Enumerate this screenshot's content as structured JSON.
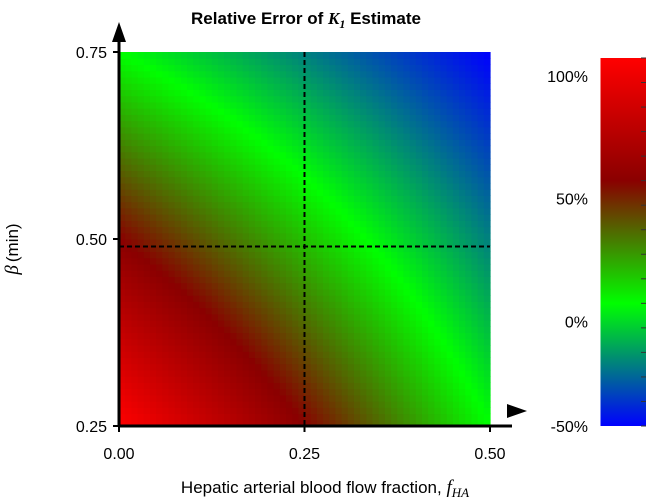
{
  "chart_data": {
    "type": "heatmap",
    "title_prefix": "Relative Error of ",
    "title_var": "K",
    "title_sub": "1",
    "title_suffix": " Estimate",
    "xlabel_text": "Hepatic arterial blood flow fraction, ",
    "xlabel_var": "f",
    "xlabel_sub": "HA",
    "ylabel_symbol": "β",
    "ylabel_unit": "(min)",
    "x_ticks": [
      {
        "value": 0.0,
        "label": "0.00"
      },
      {
        "value": 0.25,
        "label": "0.25"
      },
      {
        "value": 0.5,
        "label": "0.50"
      }
    ],
    "y_ticks": [
      {
        "value": 0.25,
        "label": "0.25"
      },
      {
        "value": 0.5,
        "label": "0.50"
      },
      {
        "value": 0.75,
        "label": "0.75"
      }
    ],
    "xlim": [
      0.0,
      0.5
    ],
    "ylim": [
      0.25,
      0.75
    ],
    "reference_lines": {
      "x": 0.25,
      "y": 0.49
    },
    "corner_values_percent": {
      "x0_ymin": 100,
      "x0_ymax": 0,
      "xmax_ymin": 0,
      "xmax_ymax": -50
    },
    "colorbar": {
      "range_percent": [
        -50,
        100
      ],
      "ticks": [
        {
          "value": 100,
          "label": "100%"
        },
        {
          "value": 50,
          "label": "50%"
        },
        {
          "value": 0,
          "label": "0%"
        },
        {
          "value": -50,
          "label": "-50%"
        }
      ],
      "colors": [
        {
          "value": -50,
          "color": "#0000ff"
        },
        {
          "value": 0,
          "color": "#00ff00"
        },
        {
          "value": 50,
          "color": "#8a0000"
        },
        {
          "value": 100,
          "color": "#ff0000"
        }
      ]
    },
    "grid": false
  }
}
